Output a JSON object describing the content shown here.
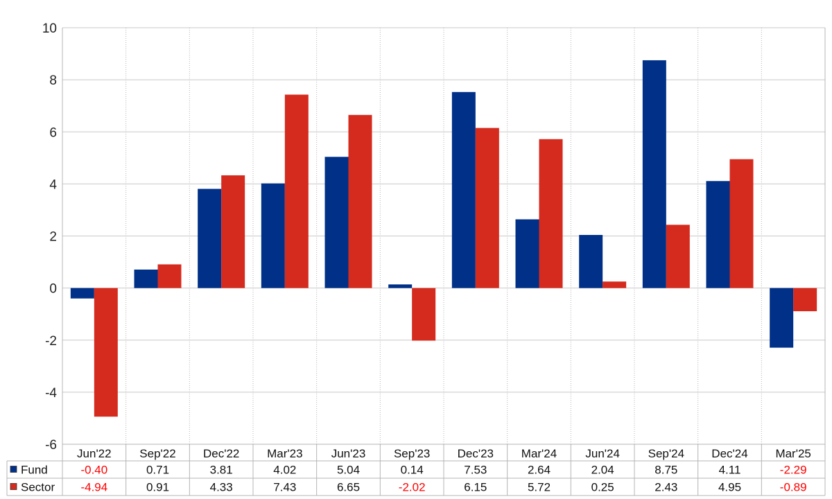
{
  "chart_data": {
    "type": "bar",
    "title": "",
    "xlabel": "",
    "ylabel": "",
    "ylim": [
      -6,
      10
    ],
    "yticks": [
      "-6",
      "-4",
      "-2",
      "0",
      "2",
      "4",
      "6",
      "8",
      "10"
    ],
    "categories": [
      "Jun'22",
      "Sep'22",
      "Dec'22",
      "Mar'23",
      "Jun'23",
      "Sep'23",
      "Dec'23",
      "Mar'24",
      "Jun'24",
      "Sep'24",
      "Dec'24",
      "Mar'25"
    ],
    "series": [
      {
        "name": "Fund",
        "color": "#003087",
        "values": [
          -0.4,
          0.71,
          3.81,
          4.02,
          5.04,
          0.14,
          7.53,
          2.64,
          2.04,
          8.75,
          4.11,
          -2.29
        ],
        "labels": [
          "-0.40",
          "0.71",
          "3.81",
          "4.02",
          "5.04",
          "0.14",
          "7.53",
          "2.64",
          "2.04",
          "8.75",
          "4.11",
          "-2.29"
        ]
      },
      {
        "name": "Sector",
        "color": "#d52b1e",
        "values": [
          -4.94,
          0.91,
          4.33,
          7.43,
          6.65,
          -2.02,
          6.15,
          5.72,
          0.25,
          2.43,
          4.95,
          -0.89
        ],
        "labels": [
          "-4.94",
          "0.91",
          "4.33",
          "7.43",
          "6.65",
          "-2.02",
          "6.15",
          "5.72",
          "0.25",
          "2.43",
          "4.95",
          "-0.89"
        ]
      }
    ],
    "grid": true,
    "legend": "table-bottom",
    "negative_label_color": "#ff0000"
  }
}
